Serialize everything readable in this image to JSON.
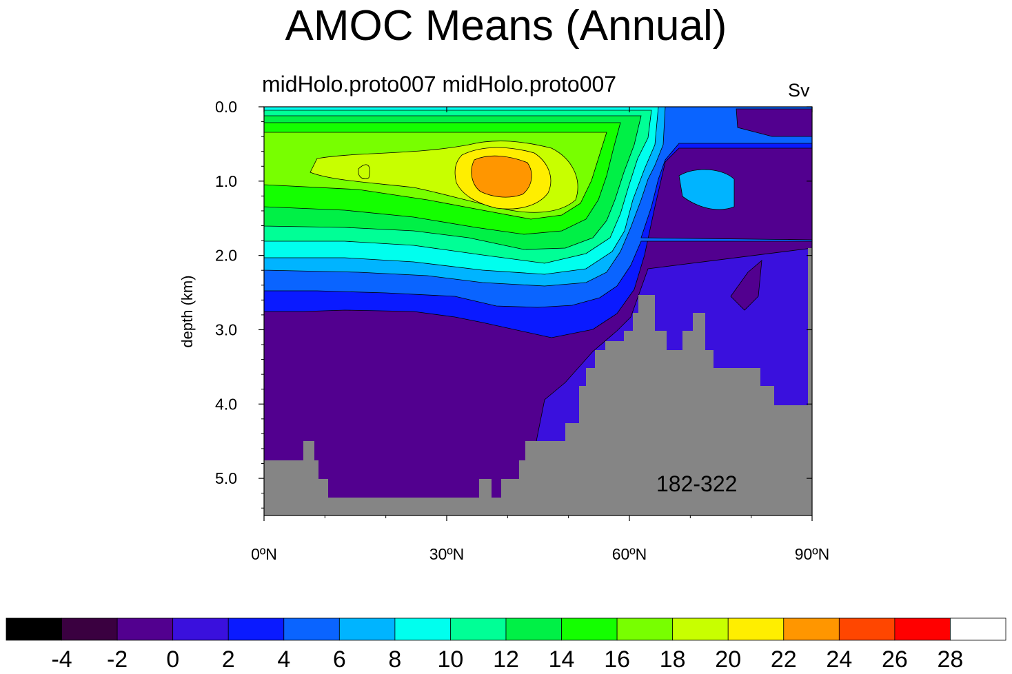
{
  "chart_data": {
    "type": "heatmap",
    "title": "AMOC Means (Annual)",
    "left_subtitle": "midHolo.proto007  midHolo.proto007",
    "units": "Sv",
    "ylabel": "depth (km)",
    "annotation": "182-322",
    "x_ticks": [
      {
        "value": 0,
        "label": "0ºN"
      },
      {
        "value": 30,
        "label": "30ºN"
      },
      {
        "value": 60,
        "label": "60ºN"
      },
      {
        "value": 90,
        "label": "90ºN"
      }
    ],
    "y_ticks": [
      {
        "value": 0,
        "label": "0.0"
      },
      {
        "value": 1,
        "label": "1.0"
      },
      {
        "value": 2,
        "label": "2.0"
      },
      {
        "value": 3,
        "label": "3.0"
      },
      {
        "value": 4,
        "label": "4.0"
      },
      {
        "value": 5,
        "label": "5.0"
      }
    ],
    "xlim": [
      0,
      90
    ],
    "ylim": [
      0,
      5.5
    ],
    "colorbar": {
      "labels": [
        "-4",
        "-2",
        "0",
        "2",
        "4",
        "6",
        "8",
        "10",
        "12",
        "14",
        "16",
        "18",
        "20",
        "22",
        "24",
        "26",
        "28"
      ],
      "colors": [
        "#000000",
        "#3a0040",
        "#52008f",
        "#3a10dd",
        "#0a1aff",
        "#0a64ff",
        "#00b4ff",
        "#00ffee",
        "#00ff96",
        "#00f046",
        "#14ff00",
        "#78ff00",
        "#c8ff00",
        "#ffee00",
        "#ff9600",
        "#ff4600",
        "#ff0000",
        "#ffffff"
      ]
    },
    "overturning_max": {
      "value": 24,
      "lat": 38,
      "depth": 0.9
    },
    "land_mask_color": "#858585"
  }
}
